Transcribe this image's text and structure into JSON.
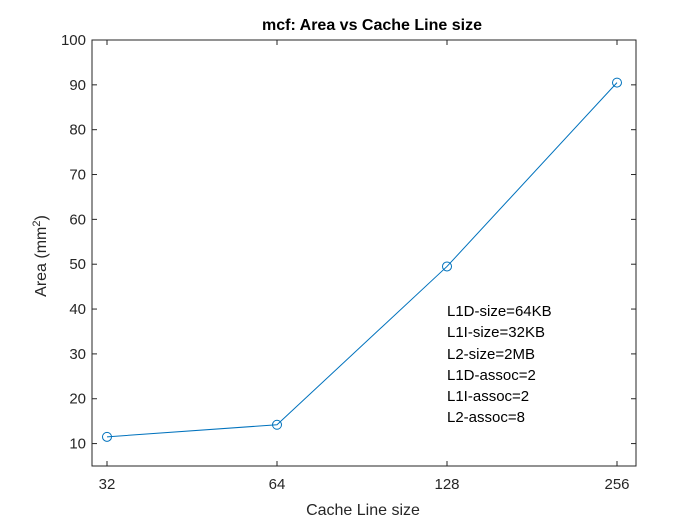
{
  "chart_data": {
    "type": "line",
    "title": "mcf: Area vs Cache Line size",
    "xlabel": "Cache Line size",
    "ylabel": "Area (mm",
    "ylabel_sup": "2",
    "ylabel_tail": ")",
    "x_scale": "log2",
    "x": [
      32,
      64,
      128,
      256
    ],
    "xticks": [
      "32",
      "64",
      "128",
      "256"
    ],
    "yticks": [
      "10",
      "20",
      "30",
      "40",
      "50",
      "60",
      "70",
      "80",
      "90",
      "100"
    ],
    "ylim": [
      5,
      100
    ],
    "grid": false,
    "series": [
      {
        "values": [
          11.5,
          14.2,
          49.5,
          90.5
        ],
        "color": "#0072BD",
        "marker": "circle"
      }
    ],
    "annotations": [
      "L1D-size=64KB",
      "L1I-size=32KB",
      "L2-size=2MB",
      "L1D-assoc=2",
      "L1I-assoc=2",
      "L2-assoc=8"
    ]
  }
}
